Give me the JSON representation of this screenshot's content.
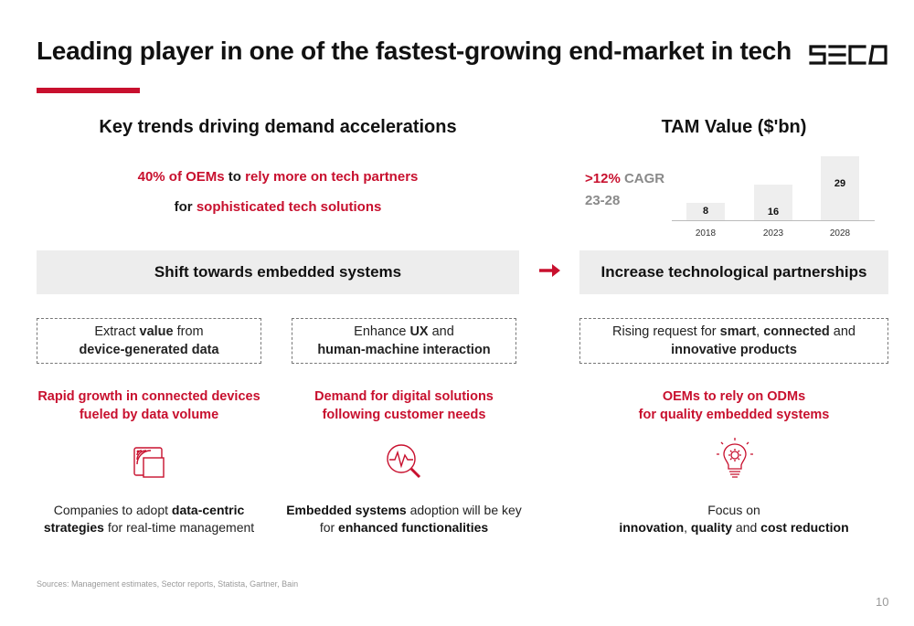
{
  "header": {
    "title": "Leading player in one of the fastest-growing end-market in tech",
    "logo_text": "SECO"
  },
  "left": {
    "heading": "Key trends driving demand accelerations",
    "stat_line1": {
      "red_a": "40% of OEMs",
      "mid": " to ",
      "red_b": "rely more on tech partners"
    },
    "stat_line2": {
      "mid": "for ",
      "red": "sophisticated tech solutions"
    },
    "band": "Shift towards embedded systems",
    "box1": {
      "pre": "Extract ",
      "bold": "value",
      "post": " from",
      "line2": "device-generated data"
    },
    "box2": {
      "pre": "Enhance ",
      "bold": "UX",
      "post": " and",
      "line2": "human-machine interaction"
    },
    "head1": [
      "Rapid growth in connected devices",
      "fueled by data volume"
    ],
    "head2": [
      "Demand for digital solutions",
      "following customer needs"
    ],
    "desc1": {
      "pre": "Companies to adopt ",
      "bold_a": "data-centric",
      "bold_b": "strategies",
      "post": " for real-time management"
    },
    "desc2": {
      "bold_a": "Embedded systems",
      "post_a": " adoption will be key",
      "pre_b": "for ",
      "bold_b": "enhanced functionalities"
    }
  },
  "right": {
    "heading": "TAM Value ($'bn)",
    "cagr": {
      "red": ">12%",
      "grey": " CAGR",
      "line2": "23-28"
    },
    "band": "Increase technological partnerships",
    "box": {
      "pre": "Rising request for ",
      "bold_a": "smart",
      "sep": ", ",
      "bold_b": "connected",
      "post": " and",
      "line2": "innovative products"
    },
    "head": [
      "OEMs to rely on ODMs",
      "for quality embedded systems"
    ],
    "desc": {
      "line1": "Focus on",
      "bold_a": "innovation",
      "sep": ", ",
      "bold_b": "quality",
      "mid": " and ",
      "bold_c": "cost reduction"
    }
  },
  "chart_data": {
    "type": "bar",
    "title": "TAM Value ($'bn)",
    "categories": [
      "2018",
      "2023",
      "2028"
    ],
    "values": [
      8,
      16,
      29
    ],
    "annotation": ">12% CAGR 23-28",
    "ylim": [
      0,
      29
    ]
  },
  "footer": {
    "source": "Sources: Management estimates, Sector reports, Statista, Gartner, Bain",
    "page": "10"
  },
  "colors": {
    "accent": "#c8102e",
    "band": "#ededed",
    "bar": "#eeeeee"
  },
  "icons": [
    "arrow-right-icon",
    "connected-device-icon",
    "signal-search-icon",
    "lightbulb-gear-icon"
  ]
}
